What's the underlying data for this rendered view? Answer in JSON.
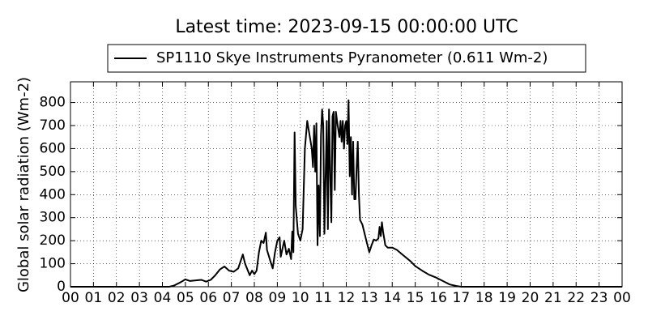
{
  "chart_data": {
    "type": "line",
    "title": "Latest time: 2023-09-15 00:00:00 UTC",
    "y_label": "Global solar radiation (Wm-2)",
    "x": [
      0,
      4.3,
      4.5,
      4.8,
      5.0,
      5.2,
      5.5,
      5.7,
      5.9,
      6.1,
      6.3,
      6.5,
      6.7,
      6.9,
      7.1,
      7.3,
      7.5,
      7.6,
      7.8,
      7.9,
      8.0,
      8.1,
      8.2,
      8.3,
      8.4,
      8.5,
      8.55,
      8.7,
      8.8,
      8.9,
      9.0,
      9.1,
      9.15,
      9.3,
      9.4,
      9.5,
      9.6,
      9.65,
      9.7,
      9.75,
      9.8,
      9.9,
      10.0,
      10.1,
      10.2,
      10.3,
      10.4,
      10.5,
      10.55,
      10.6,
      10.65,
      10.7,
      10.75,
      10.8,
      10.85,
      10.9,
      10.95,
      11.0,
      11.05,
      11.1,
      11.15,
      11.2,
      11.25,
      11.3,
      11.35,
      11.4,
      11.45,
      11.5,
      11.55,
      11.6,
      11.7,
      11.75,
      11.8,
      11.85,
      11.9,
      11.95,
      12.0,
      12.05,
      12.1,
      12.15,
      12.2,
      12.25,
      12.3,
      12.35,
      12.4,
      12.45,
      12.5,
      12.55,
      12.6,
      12.7,
      12.8,
      12.9,
      13.0,
      13.1,
      13.2,
      13.3,
      13.4,
      13.45,
      13.5,
      13.55,
      13.6,
      13.7,
      13.8,
      14.0,
      14.2,
      14.5,
      14.8,
      15.0,
      15.3,
      15.6,
      15.9,
      16.2,
      16.5,
      16.8,
      17.0,
      24
    ],
    "series": [
      {
        "name": "SP1110 Skye Instruments Pyranometer (0.611 Wm-2)",
        "color": "#000000",
        "values": [
          0,
          0,
          5,
          20,
          32,
          25,
          28,
          30,
          22,
          30,
          50,
          75,
          88,
          70,
          65,
          80,
          140,
          100,
          50,
          70,
          55,
          70,
          150,
          200,
          190,
          235,
          160,
          110,
          80,
          150,
          200,
          215,
          130,
          200,
          140,
          165,
          120,
          240,
          150,
          670,
          350,
          230,
          200,
          250,
          600,
          720,
          660,
          600,
          520,
          700,
          500,
          710,
          180,
          440,
          220,
          660,
          770,
          700,
          230,
          480,
          720,
          250,
          770,
          500,
          280,
          740,
          760,
          420,
          760,
          720,
          650,
          720,
          630,
          720,
          600,
          700,
          720,
          620,
          810,
          480,
          650,
          400,
          630,
          380,
          380,
          520,
          630,
          400,
          290,
          270,
          230,
          190,
          150,
          180,
          205,
          200,
          210,
          260,
          220,
          280,
          240,
          180,
          170,
          170,
          160,
          135,
          110,
          90,
          70,
          52,
          40,
          25,
          10,
          3,
          0,
          0
        ]
      }
    ],
    "xlim": [
      0,
      24
    ],
    "xticks": [
      {
        "value": 0,
        "label": "00"
      },
      {
        "value": 1,
        "label": "01"
      },
      {
        "value": 2,
        "label": "02"
      },
      {
        "value": 3,
        "label": "03"
      },
      {
        "value": 4,
        "label": "04"
      },
      {
        "value": 5,
        "label": "05"
      },
      {
        "value": 6,
        "label": "06"
      },
      {
        "value": 7,
        "label": "07"
      },
      {
        "value": 8,
        "label": "08"
      },
      {
        "value": 9,
        "label": "09"
      },
      {
        "value": 10,
        "label": "10"
      },
      {
        "value": 11,
        "label": "11"
      },
      {
        "value": 12,
        "label": "12"
      },
      {
        "value": 13,
        "label": "13"
      },
      {
        "value": 14,
        "label": "14"
      },
      {
        "value": 15,
        "label": "15"
      },
      {
        "value": 16,
        "label": "16"
      },
      {
        "value": 17,
        "label": "17"
      },
      {
        "value": 18,
        "label": "18"
      },
      {
        "value": 19,
        "label": "19"
      },
      {
        "value": 20,
        "label": "20"
      },
      {
        "value": 21,
        "label": "21"
      },
      {
        "value": 22,
        "label": "22"
      },
      {
        "value": 23,
        "label": "23"
      },
      {
        "value": 24,
        "label": "00"
      }
    ],
    "ylim": [
      0,
      890
    ],
    "yticks": [
      0,
      100,
      200,
      300,
      400,
      500,
      600,
      700,
      800
    ],
    "grid": true
  }
}
